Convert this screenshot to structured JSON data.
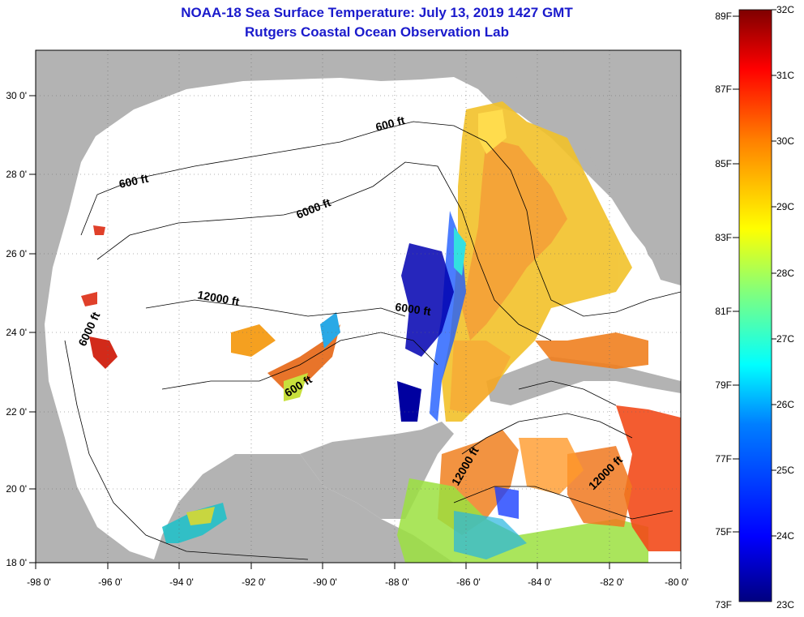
{
  "header": {
    "title": "NOAA-18 Sea Surface Temperature:  July 13, 2019 1427 GMT",
    "subtitle": "Rutgers Coastal Ocean Observation Lab"
  },
  "axes": {
    "lat_labels": [
      "30 0'",
      "28 0'",
      "26 0'",
      "24 0'",
      "22 0'",
      "20 0'",
      "18 0'"
    ],
    "lon_labels": [
      "-98 0'",
      "-96 0'",
      "-94 0'",
      "-92 0'",
      "-90 0'",
      "-88 0'",
      "-86 0'",
      "-84 0'",
      "-82 0'",
      "-80 0'"
    ]
  },
  "contours": {
    "labels": [
      "600 ft",
      "600 ft",
      "6000 ft",
      "12000 ft",
      "6000 ft",
      "6000 ft",
      "600 ft",
      "12000 ft",
      "12000 ft"
    ]
  },
  "colorbar": {
    "f_labels": [
      "89F",
      "87F",
      "85F",
      "83F",
      "81F",
      "79F",
      "77F",
      "75F",
      "73F"
    ],
    "c_labels": [
      "32C",
      "31C",
      "30C",
      "29C",
      "28C",
      "27C",
      "26C",
      "25C",
      "24C",
      "23C"
    ],
    "colors": [
      "#00007f",
      "#0000ff",
      "#007fff",
      "#00ffff",
      "#7fff7f",
      "#ffff00",
      "#ff7f00",
      "#ff0000",
      "#7f0000"
    ]
  },
  "palette": {
    "land": "#b3b3b3",
    "water": "#ffffff",
    "title_color": "#1a1acc"
  }
}
